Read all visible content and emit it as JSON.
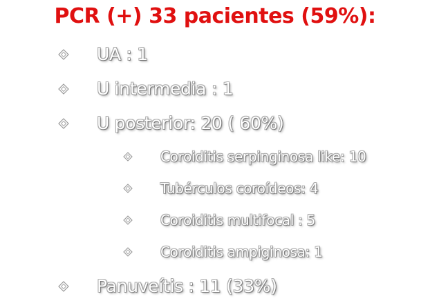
{
  "title": "PCR (+) 33 pacientes (59%):",
  "bullet_icon": "diamond-bullet-icon",
  "items": [
    {
      "level": 1,
      "text": "UA : 1"
    },
    {
      "level": 1,
      "text": "U intermedia : 1"
    },
    {
      "level": 1,
      "text": "U posterior: 20 ( 60%)"
    },
    {
      "level": 2,
      "text": "Coroiditis serpinginosa like: 10"
    },
    {
      "level": 2,
      "text": "Tubérculos coroídeos: 4"
    },
    {
      "level": 2,
      "text": "Coroiditis multifocal : 5"
    },
    {
      "level": 2,
      "text": "Coroiditis ampiginosa: 1"
    },
    {
      "level": 1,
      "text": "Panuveítis : 11 (33%)"
    }
  ]
}
